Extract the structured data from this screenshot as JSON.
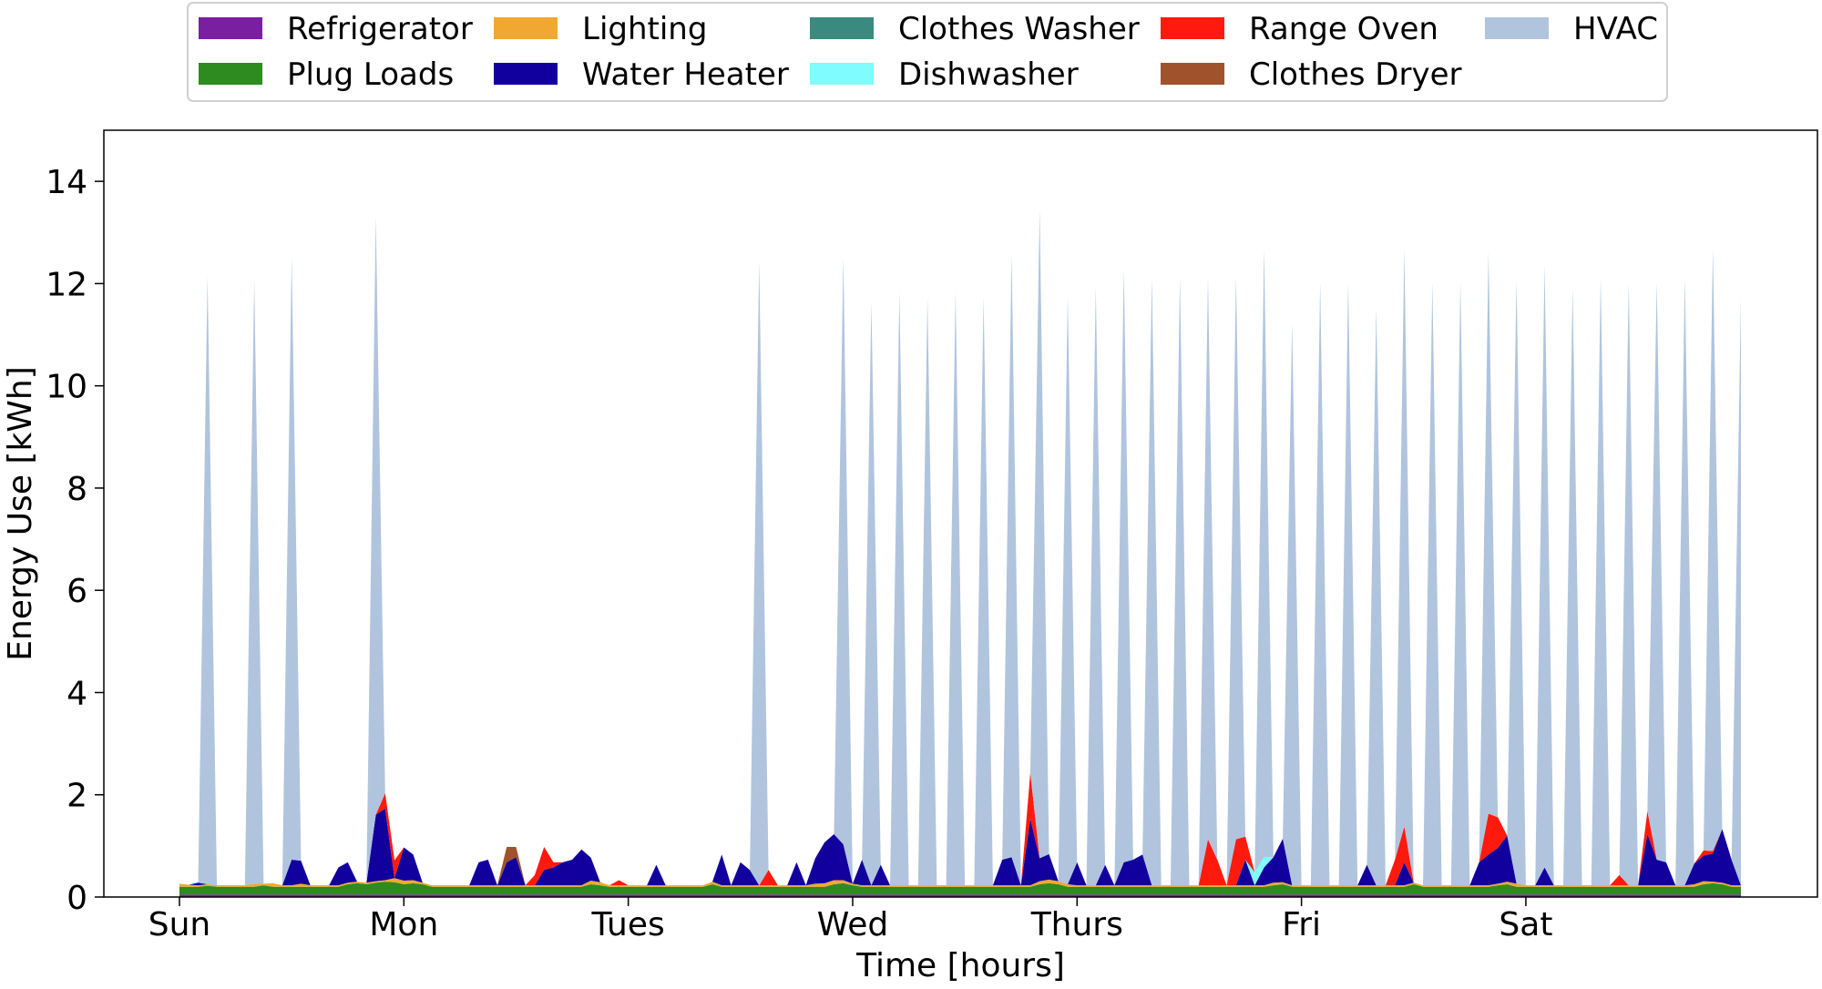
{
  "chart_data": {
    "type": "area",
    "stacked": true,
    "xlabel": "Time [hours]",
    "ylabel": "Energy Use [kWh]",
    "xlim": [
      0,
      167
    ],
    "ylim": [
      0,
      15
    ],
    "yticks": [
      0,
      2,
      4,
      6,
      8,
      10,
      12,
      14
    ],
    "xticks": [
      {
        "value": 0,
        "label": "Sun"
      },
      {
        "value": 24,
        "label": "Mon"
      },
      {
        "value": 48,
        "label": "Tues"
      },
      {
        "value": 72,
        "label": "Wed"
      },
      {
        "value": 96,
        "label": "Thurs"
      },
      {
        "value": 120,
        "label": "Fri"
      },
      {
        "value": 144,
        "label": "Sat"
      }
    ],
    "grid": false,
    "legend_position": "top",
    "series_defaults": {
      "Refrigerator": 0.05,
      "Plug Loads": 0.15,
      "Lighting": 0.03,
      "Water Heater": 0,
      "Clothes Washer": 0,
      "Dishwasher": 0,
      "Range Oven": 0,
      "Clothes Dryer": 0,
      "HVAC": 0
    },
    "series": [
      {
        "name": "Refrigerator",
        "color": "#7b1fa2",
        "values": {}
      },
      {
        "name": "Plug Loads",
        "color": "#2e8b1f",
        "values": {
          "3": 0.17,
          "9": 0.18,
          "18": 0.2,
          "19": 0.22,
          "20": 0.2,
          "21": 0.23,
          "22": 0.25,
          "23": 0.24,
          "24": 0.2,
          "25": 0.22,
          "26": 0.2,
          "44": 0.2,
          "45": 0.18,
          "57": 0.2,
          "70": 0.2,
          "71": 0.22,
          "72": 0.18,
          "92": 0.2,
          "93": 0.22,
          "94": 0.2,
          "117": 0.18,
          "118": 0.2,
          "132": 0.2,
          "141": 0.18,
          "142": 0.2,
          "163": 0.2,
          "164": 0.22,
          "165": 0.2
        }
      },
      {
        "name": "Lighting",
        "color": "#f0a830",
        "values": {
          "0": 0.06,
          "1": 0.04,
          "8": 0.06,
          "10": 0.07,
          "13": 0.06,
          "23": 0.08,
          "24": 0.07,
          "25": 0.06,
          "44": 0.07,
          "45": 0.06,
          "57": 0.05,
          "68": 0.06,
          "69": 0.07,
          "70": 0.08,
          "71": 0.06,
          "92": 0.06,
          "93": 0.07,
          "94": 0.06,
          "95": 0.05,
          "117": 0.05,
          "118": 0.04,
          "142": 0.05,
          "143": 0.06,
          "162": 0.05,
          "163": 0.06
        }
      },
      {
        "name": "Water Heater",
        "color": "#12009e",
        "values": {
          "2": 0.05,
          "12": 0.5,
          "13": 0.45,
          "17": 0.35,
          "18": 0.4,
          "21": 1.3,
          "22": 1.4,
          "24": 0.65,
          "25": 0.5,
          "32": 0.45,
          "33": 0.5,
          "35": 0.45,
          "36": 0.55,
          "39": 0.3,
          "40": 0.35,
          "41": 0.45,
          "42": 0.5,
          "43": 0.7,
          "44": 0.45,
          "51": 0.4,
          "58": 0.6,
          "60": 0.45,
          "61": 0.3,
          "66": 0.45,
          "68": 0.5,
          "69": 0.8,
          "70": 0.9,
          "71": 0.7,
          "73": 0.5,
          "75": 0.4,
          "88": 0.5,
          "89": 0.55,
          "91": 1.3,
          "92": 0.45,
          "93": 0.5,
          "96": 0.45,
          "99": 0.4,
          "101": 0.45,
          "102": 0.5,
          "103": 0.6,
          "114": 0.5,
          "116": 0.35,
          "117": 0.5,
          "118": 0.85,
          "127": 0.4,
          "131": 0.45,
          "139": 0.45,
          "140": 0.6,
          "141": 0.7,
          "142": 0.9,
          "146": 0.35,
          "157": 1.0,
          "158": 0.5,
          "159": 0.45,
          "162": 0.4,
          "163": 0.5,
          "164": 0.55,
          "165": 1.05,
          "166": 0.5
        }
      },
      {
        "name": "Clothes Washer",
        "color": "#3a8a7f",
        "values": {}
      },
      {
        "name": "Dishwasher",
        "color": "#7ffcff",
        "values": {
          "115": 0.25,
          "116": 0.2
        }
      },
      {
        "name": "Range Oven",
        "color": "#ff1a0d",
        "values": {
          "22": 0.3,
          "23": 0.35,
          "38": 0.2,
          "39": 0.45,
          "40": 0.1,
          "47": 0.1,
          "63": 0.3,
          "91": 0.9,
          "110": 0.9,
          "111": 0.5,
          "113": 0.9,
          "114": 0.45,
          "130": 0.5,
          "131": 0.7,
          "140": 0.8,
          "141": 0.6,
          "154": 0.2,
          "157": 0.45,
          "163": 0.1,
          "164": 0.05
        }
      },
      {
        "name": "Clothes Dryer",
        "color": "#a0522d",
        "values": {
          "35": 0.3,
          "36": 0.2
        }
      },
      {
        "name": "HVAC",
        "color": "#b0c4de",
        "values": {
          "3": 11.9,
          "8": 11.8,
          "12": 11.8,
          "21": 11.7,
          "62": 12.2,
          "71": 11.5,
          "74": 11.4,
          "77": 11.6,
          "80": 11.5,
          "83": 11.6,
          "86": 11.5,
          "89": 11.8,
          "92": 12.7,
          "95": 11.5,
          "98": 11.7,
          "101": 11.6,
          "104": 11.9,
          "107": 11.9,
          "110": 11.0,
          "113": 11.0,
          "116": 11.9,
          "119": 11.0,
          "122": 11.8,
          "125": 11.8,
          "128": 11.3,
          "131": 11.3,
          "134": 11.8,
          "137": 11.8,
          "140": 11.0,
          "143": 11.8,
          "146": 11.8,
          "149": 11.7,
          "152": 11.9,
          "155": 11.8,
          "158": 11.3,
          "161": 11.9,
          "164": 11.8,
          "167": 11.5
        }
      }
    ]
  }
}
